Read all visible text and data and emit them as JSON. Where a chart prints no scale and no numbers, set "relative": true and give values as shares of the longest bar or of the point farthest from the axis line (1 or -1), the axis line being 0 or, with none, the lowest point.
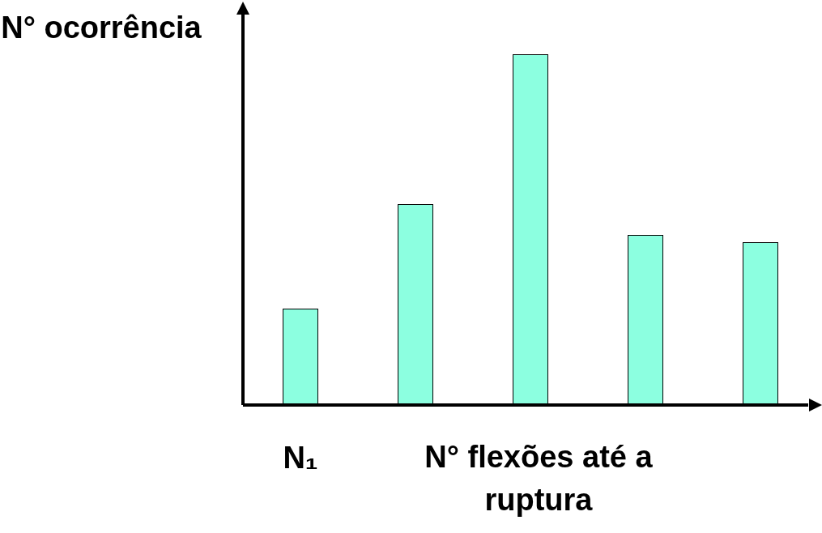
{
  "chart_data": {
    "type": "bar",
    "relative": true,
    "xlabel": "N° flexões até a ruptura",
    "ylabel": "N° ocorrência",
    "categories": [
      "N₁",
      null,
      null,
      null,
      null
    ],
    "values": [
      0.275,
      0.573,
      1,
      0.485,
      0.464
    ],
    "color": "#8cffe0",
    "grid": false,
    "legend": false
  }
}
